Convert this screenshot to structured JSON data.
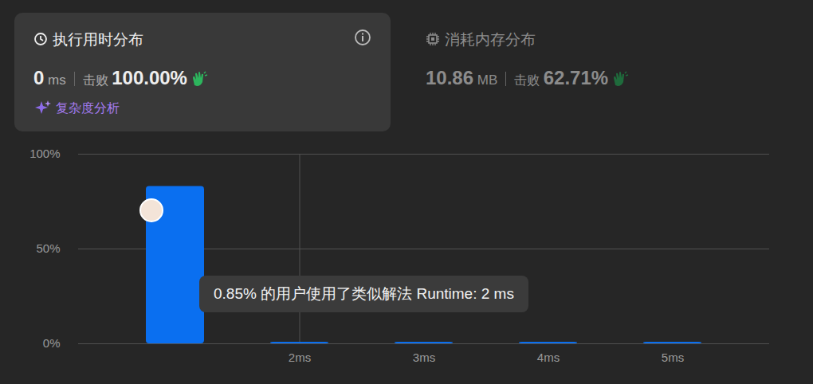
{
  "header": {
    "runtime_tab": "执行用时分布",
    "runtime_value": 0,
    "runtime_unit": "ms",
    "beats_label": "击败",
    "runtime_beats": "100.00%",
    "analysis_link": "复杂度分析",
    "memory_tab": "消耗内存分布",
    "memory_value": 10.86,
    "memory_unit": "MB",
    "memory_beats": "62.71%"
  },
  "chart_data": {
    "type": "bar",
    "categories": [
      null,
      "2ms",
      "3ms",
      "4ms",
      "5ms"
    ],
    "values": [
      83,
      0.85,
      0.85,
      0.85,
      0.85
    ],
    "color": "#0a6ff0",
    "ylim": [
      0,
      100
    ],
    "yticks": [
      {
        "value": 0,
        "label": "0%"
      },
      {
        "value": 50,
        "label": "50%"
      },
      {
        "value": 100,
        "label": "100%"
      }
    ],
    "grid": true,
    "annotation": "0.85% 的用户使用了类似解法 Runtime: 2 ms"
  }
}
